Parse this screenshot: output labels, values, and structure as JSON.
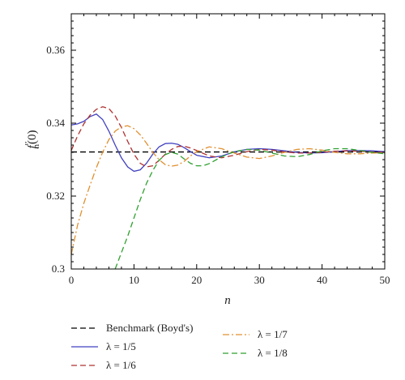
{
  "chart_data": {
    "type": "line",
    "xlabel": "n",
    "ylabel_main": "f",
    "ylabel_sup": "′′",
    "ylabel_sub": "n",
    "ylabel_tail": "(0)",
    "xlim": [
      0,
      50
    ],
    "ylim": [
      0.3,
      0.37
    ],
    "xticks": [
      0,
      10,
      20,
      30,
      40,
      50
    ],
    "xtick_labels": [
      "0",
      "10",
      "20",
      "30",
      "40",
      "50"
    ],
    "yticks": [
      0.3,
      0.32,
      0.34,
      0.36
    ],
    "ytick_labels": [
      "0.3",
      "0.32",
      "0.34",
      "0.36"
    ],
    "grid": false,
    "legend_position": "bottom",
    "series": [
      {
        "name": "Benchmark (Boyd's)",
        "color": "#000000",
        "style": "dashed",
        "x": [
          0,
          50
        ],
        "y": [
          0.3321,
          0.3321
        ]
      },
      {
        "name": "λ = 1/5",
        "color": "#4040c0",
        "style": "solid",
        "x": [
          0,
          1,
          2,
          3,
          4,
          5,
          6,
          7,
          8,
          9,
          10,
          11,
          12,
          13,
          14,
          15,
          16,
          17,
          18,
          19,
          20,
          22,
          24,
          26,
          28,
          30,
          32,
          34,
          36,
          38,
          40,
          42,
          44,
          46,
          48,
          50
        ],
        "y": [
          0.3395,
          0.3398,
          0.3405,
          0.3418,
          0.3425,
          0.341,
          0.3378,
          0.334,
          0.3305,
          0.328,
          0.3268,
          0.3272,
          0.329,
          0.3315,
          0.3335,
          0.3344,
          0.3345,
          0.3342,
          0.3333,
          0.3322,
          0.3312,
          0.3305,
          0.331,
          0.3321,
          0.3328,
          0.333,
          0.3328,
          0.3324,
          0.332,
          0.3318,
          0.3319,
          0.3322,
          0.3325,
          0.3325,
          0.3324,
          0.3322
        ]
      },
      {
        "name": "λ = 1/6",
        "color": "#b03030",
        "style": "dashed",
        "x": [
          0,
          1,
          2,
          3,
          4,
          5,
          6,
          7,
          8,
          9,
          10,
          11,
          12,
          13,
          14,
          15,
          16,
          17,
          18,
          19,
          20,
          22,
          24,
          26,
          28,
          30,
          32,
          34,
          36,
          38,
          40,
          42,
          44,
          46,
          48,
          50
        ],
        "y": [
          0.3325,
          0.3365,
          0.3398,
          0.3422,
          0.3438,
          0.3445,
          0.344,
          0.342,
          0.3388,
          0.335,
          0.3315,
          0.329,
          0.328,
          0.3283,
          0.3298,
          0.3315,
          0.3328,
          0.3336,
          0.3337,
          0.3332,
          0.3325,
          0.331,
          0.3305,
          0.3312,
          0.3322,
          0.3328,
          0.3326,
          0.3321,
          0.3318,
          0.3318,
          0.332,
          0.3323,
          0.3324,
          0.3323,
          0.3321,
          0.332
        ]
      },
      {
        "name": "λ = 1/7",
        "color": "#e09030",
        "style": "dashdot",
        "x": [
          0,
          1,
          2,
          3,
          4,
          5,
          6,
          7,
          8,
          9,
          10,
          11,
          12,
          13,
          14,
          15,
          16,
          17,
          18,
          19,
          20,
          22,
          24,
          26,
          28,
          30,
          32,
          34,
          36,
          38,
          40,
          42,
          44,
          46,
          48,
          50
        ],
        "y": [
          0.304,
          0.312,
          0.318,
          0.323,
          0.3278,
          0.332,
          0.3355,
          0.3378,
          0.339,
          0.3393,
          0.3385,
          0.3368,
          0.3345,
          0.332,
          0.33,
          0.3286,
          0.3282,
          0.3285,
          0.3295,
          0.331,
          0.3322,
          0.3335,
          0.333,
          0.3318,
          0.3307,
          0.3303,
          0.331,
          0.332,
          0.3328,
          0.333,
          0.3326,
          0.332,
          0.3316,
          0.3316,
          0.3318,
          0.3318
        ]
      },
      {
        "name": "λ = 1/8",
        "color": "#30a030",
        "style": "dashed",
        "x": [
          7,
          8,
          9,
          10,
          11,
          12,
          13,
          14,
          15,
          16,
          17,
          18,
          19,
          20,
          21,
          22,
          24,
          26,
          28,
          30,
          32,
          34,
          36,
          38,
          40,
          42,
          44,
          46,
          48,
          50
        ],
        "y": [
          0.3,
          0.3045,
          0.309,
          0.314,
          0.319,
          0.3235,
          0.327,
          0.3298,
          0.3314,
          0.332,
          0.3315,
          0.3302,
          0.329,
          0.3283,
          0.3283,
          0.3289,
          0.3308,
          0.3322,
          0.3328,
          0.3326,
          0.3318,
          0.331,
          0.3308,
          0.3314,
          0.3324,
          0.333,
          0.333,
          0.3325,
          0.332,
          0.3316
        ]
      }
    ]
  }
}
